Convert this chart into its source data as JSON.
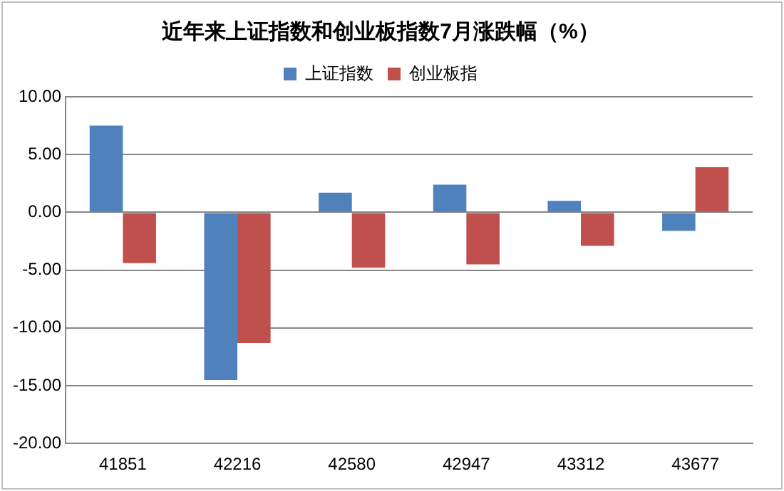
{
  "chart_data": {
    "type": "bar",
    "title": "近年来上证指数和创业板指数7月涨跌幅（%）",
    "categories": [
      "41851",
      "42216",
      "42580",
      "42947",
      "43312",
      "43677"
    ],
    "series": [
      {
        "name": "上证指数",
        "color": "#4f81bd",
        "values": [
          7.5,
          -14.5,
          1.7,
          2.4,
          1.0,
          -1.6
        ]
      },
      {
        "name": "创业板指",
        "color": "#c0504d",
        "values": [
          -4.4,
          -11.3,
          -4.8,
          -4.5,
          -2.9,
          3.9
        ]
      }
    ],
    "ylim": [
      -20,
      10
    ],
    "yticks": [
      {
        "value": -20,
        "label": "-20.00"
      },
      {
        "value": -15,
        "label": "-15.00"
      },
      {
        "value": -10,
        "label": "-10.00"
      },
      {
        "value": -5,
        "label": "-5.00"
      },
      {
        "value": 0,
        "label": "0.00"
      },
      {
        "value": 5,
        "label": "5.00"
      },
      {
        "value": 10,
        "label": "10.00"
      }
    ],
    "grid": "y",
    "legend": "top"
  }
}
